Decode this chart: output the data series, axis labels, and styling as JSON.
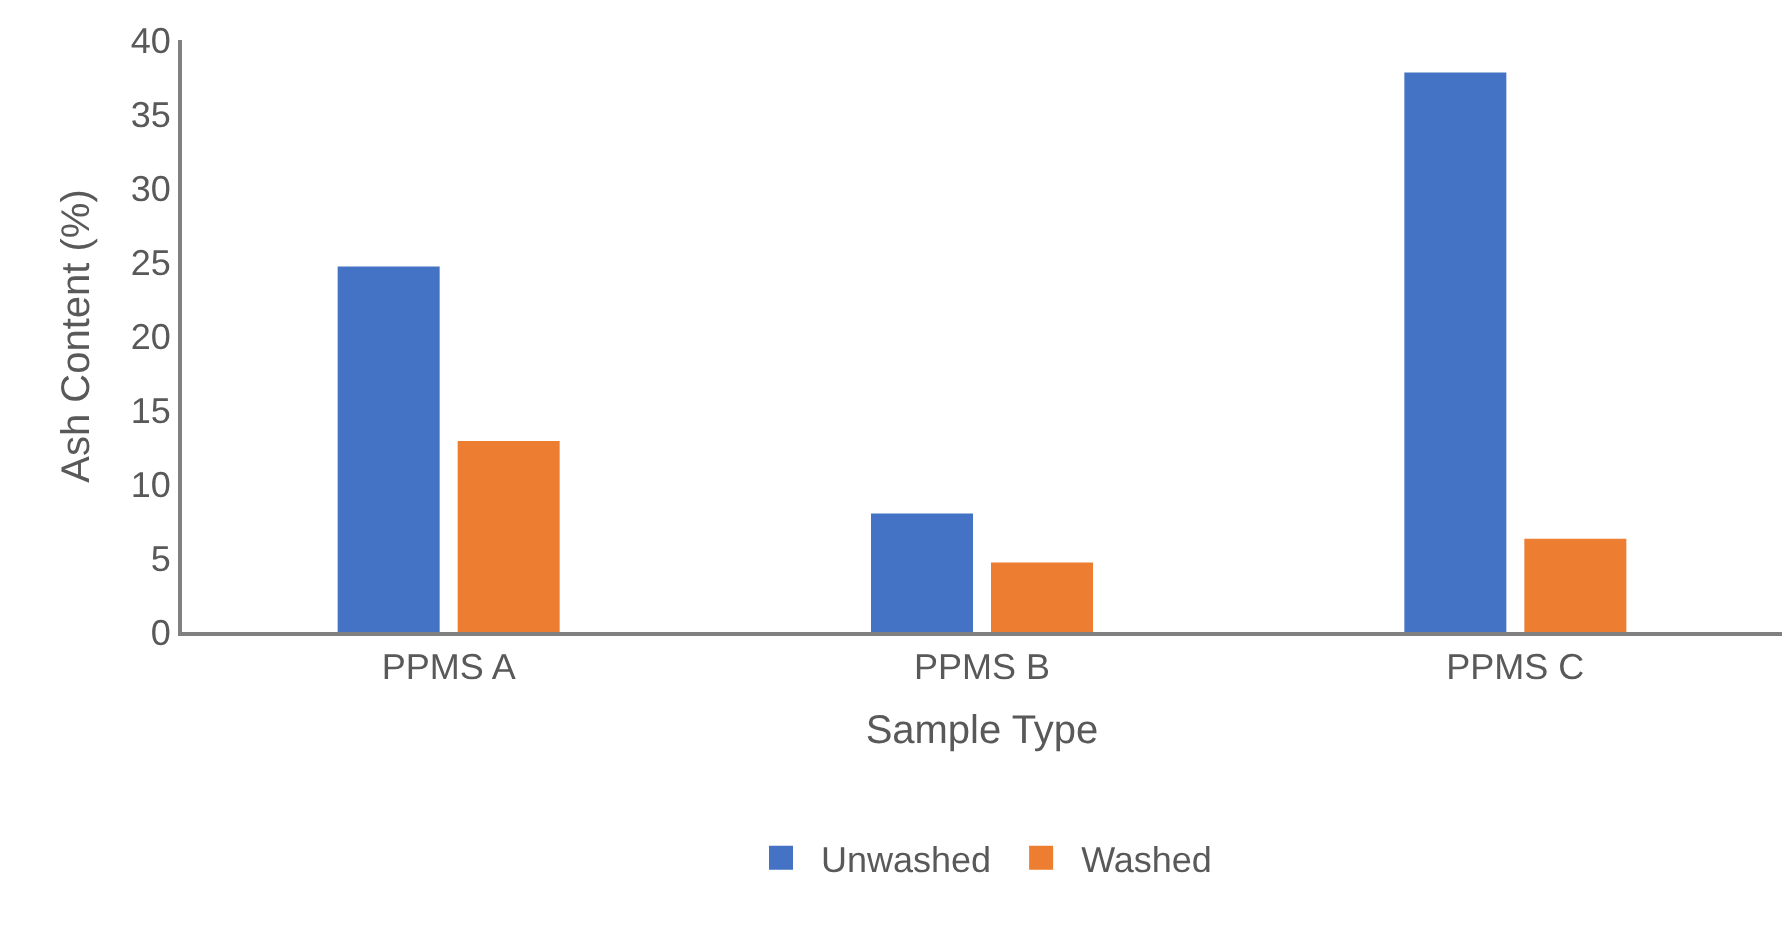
{
  "chart_data": {
    "type": "bar",
    "xlabel": "Sample Type",
    "ylabel": "Ash Content (%)",
    "categories": [
      "PPMS A",
      "PPMS B",
      "PPMS C"
    ],
    "series": [
      {
        "name": "Unwashed",
        "color": "#4472c4",
        "values": [
          24.7,
          8.0,
          37.8
        ]
      },
      {
        "name": "Washed",
        "color": "#ed7d31",
        "values": [
          12.9,
          4.7,
          6.3
        ]
      }
    ],
    "ylim": [
      0,
      40
    ],
    "yticks": [
      0,
      5,
      10,
      15,
      20,
      25,
      30,
      35,
      40
    ],
    "legend": "bottom"
  }
}
